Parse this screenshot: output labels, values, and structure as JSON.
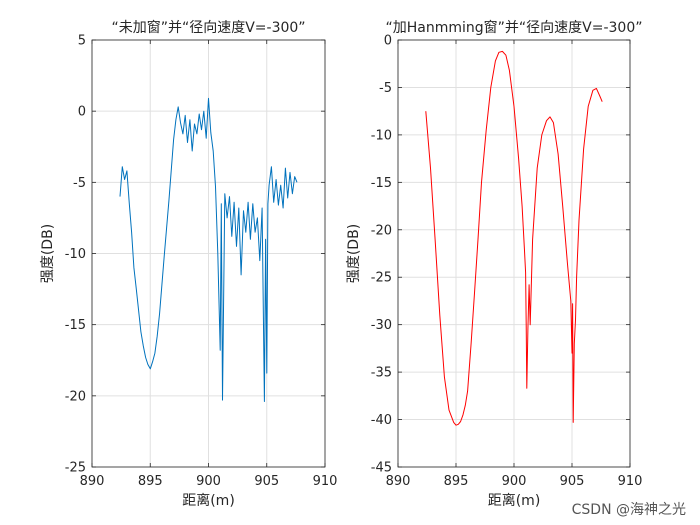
{
  "watermark": "CSDN @海神之光",
  "chart_data": [
    {
      "type": "line",
      "title": "“未加窗”并“径向速度V=-300”",
      "xlabel": "距离(m)",
      "ylabel": "强度(DB)",
      "xlim": [
        890,
        910
      ],
      "ylim": [
        -25,
        5
      ],
      "xticks": [
        890,
        895,
        900,
        905,
        910
      ],
      "yticks": [
        5,
        0,
        -5,
        -10,
        -15,
        -20,
        -25
      ],
      "grid": true,
      "color": "#0072BD",
      "series": [
        {
          "x": [
            892.4,
            892.6,
            892.8,
            893.0,
            893.2,
            893.4,
            893.6,
            893.8,
            894.0,
            894.2,
            894.4,
            894.6,
            894.8,
            895.0,
            895.2,
            895.4,
            895.6,
            895.8,
            896.0,
            896.2,
            896.4,
            896.6,
            896.8,
            897.0,
            897.2,
            897.4,
            897.6,
            897.8,
            898.0,
            898.2,
            898.4,
            898.6,
            898.8,
            899.0,
            899.2,
            899.4,
            899.6,
            899.8,
            900.0,
            900.2,
            900.4,
            900.6,
            900.8,
            901.0,
            901.1,
            901.2,
            901.4,
            901.6,
            901.8,
            902.0,
            902.2,
            902.4,
            902.6,
            902.8,
            903.0,
            903.2,
            903.4,
            903.6,
            903.8,
            904.0,
            904.2,
            904.4,
            904.6,
            904.8,
            904.9,
            905.0,
            905.1,
            905.2,
            905.4,
            905.6,
            905.8,
            906.0,
            906.2,
            906.4,
            906.6,
            906.8,
            907.0,
            907.2,
            907.4,
            907.6
          ],
          "y": [
            -6.0,
            -3.9,
            -4.8,
            -4.2,
            -6.5,
            -8.5,
            -11.0,
            -12.5,
            -14.0,
            -15.5,
            -16.5,
            -17.3,
            -17.8,
            -18.1,
            -17.6,
            -17.0,
            -15.8,
            -14.2,
            -12.2,
            -10.2,
            -8.2,
            -6.3,
            -4.2,
            -2.0,
            -0.6,
            0.3,
            -0.8,
            -1.6,
            -0.3,
            -2.2,
            -0.6,
            -2.8,
            -0.9,
            -1.6,
            -0.2,
            -1.3,
            0.0,
            -1.9,
            0.9,
            -1.5,
            -2.8,
            -5.3,
            -10.0,
            -16.8,
            -6.5,
            -20.3,
            -5.8,
            -7.5,
            -6.0,
            -8.8,
            -6.4,
            -9.5,
            -6.8,
            -11.5,
            -7.0,
            -8.5,
            -6.4,
            -9.0,
            -6.5,
            -8.5,
            -7.5,
            -10.5,
            -6.8,
            -20.4,
            -9.0,
            -18.4,
            -6.5,
            -5.2,
            -3.9,
            -6.4,
            -4.8,
            -6.6,
            -5.2,
            -6.8,
            -4.0,
            -6.1,
            -4.3,
            -5.8,
            -4.6,
            -5.0
          ]
        }
      ]
    },
    {
      "type": "line",
      "title": "“加Hanmming窗”并“径向速度V=-300”",
      "xlabel": "距离(m)",
      "ylabel": "强度(DB)",
      "xlim": [
        890,
        910
      ],
      "ylim": [
        -45,
        0
      ],
      "xticks": [
        890,
        895,
        900,
        905,
        910
      ],
      "yticks": [
        0,
        -5,
        -10,
        -15,
        -20,
        -25,
        -30,
        -35,
        -40,
        -45
      ],
      "grid": true,
      "color": "#FF0000",
      "series": [
        {
          "x": [
            892.4,
            892.8,
            893.2,
            893.6,
            894.0,
            894.4,
            894.8,
            895.0,
            895.2,
            895.4,
            895.6,
            895.8,
            896.0,
            896.3,
            896.6,
            896.9,
            897.2,
            897.6,
            898.0,
            898.4,
            898.7,
            899.0,
            899.3,
            899.6,
            900.0,
            900.4,
            900.7,
            900.9,
            901.0,
            901.05,
            901.1,
            901.2,
            901.3,
            901.4,
            901.6,
            902.0,
            902.4,
            902.8,
            903.1,
            903.4,
            903.8,
            904.2,
            904.6,
            904.9,
            905.0,
            905.05,
            905.1,
            905.2,
            905.3,
            905.4,
            905.6,
            906.0,
            906.4,
            906.8,
            907.1,
            907.4,
            907.6
          ],
          "y": [
            -7.5,
            -13.5,
            -21.0,
            -29.0,
            -35.5,
            -39.0,
            -40.3,
            -40.6,
            -40.5,
            -40.2,
            -39.5,
            -38.5,
            -37.0,
            -32.0,
            -26.5,
            -21.0,
            -15.0,
            -9.5,
            -5.0,
            -2.2,
            -1.3,
            -1.2,
            -1.6,
            -3.2,
            -7.0,
            -12.5,
            -17.5,
            -22.0,
            -24.5,
            -30.0,
            -36.7,
            -30.5,
            -25.8,
            -30.0,
            -21.0,
            -13.5,
            -10.0,
            -8.5,
            -8.1,
            -8.7,
            -12.0,
            -17.5,
            -23.5,
            -27.5,
            -33.0,
            -27.8,
            -40.3,
            -32.0,
            -29.5,
            -25.0,
            -19.0,
            -11.5,
            -7.0,
            -5.3,
            -5.1,
            -5.9,
            -6.5
          ]
        }
      ]
    }
  ]
}
